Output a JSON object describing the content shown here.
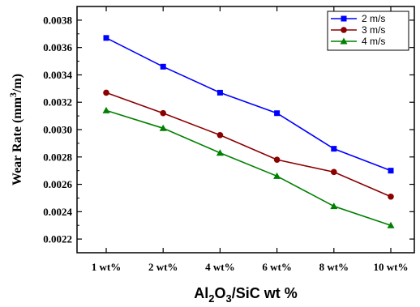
{
  "chart_data": {
    "type": "line",
    "categories": [
      "1 wt%",
      "2 wt%",
      "4 wt%",
      "6 wt%",
      "8 wt%",
      "10 wt%"
    ],
    "series": [
      {
        "name": "2 m/s",
        "color": "#0000ff",
        "marker": "square",
        "values": [
          0.00367,
          0.00346,
          0.00327,
          0.00312,
          0.00286,
          0.0027
        ]
      },
      {
        "name": "3 m/s",
        "color": "#8b0000",
        "marker": "circle",
        "values": [
          0.00327,
          0.00312,
          0.00296,
          0.00278,
          0.00269,
          0.00251
        ]
      },
      {
        "name": "4 m/s",
        "color": "#008000",
        "marker": "triangle",
        "values": [
          0.00314,
          0.00301,
          0.00283,
          0.00266,
          0.00244,
          0.0023
        ]
      }
    ],
    "ylim": [
      0.0021,
      0.0039
    ],
    "yticks": [
      "0.0022",
      "0.0024",
      "0.0026",
      "0.0028",
      "0.0030",
      "0.0032",
      "0.0034",
      "0.0036",
      "0.0038"
    ],
    "ytick_values": [
      0.0022,
      0.0024,
      0.0026,
      0.0028,
      0.003,
      0.0032,
      0.0034,
      0.0036,
      0.0038
    ],
    "xlabel": {
      "p1": "Al",
      "s1": "2",
      "p2": "O",
      "s2": "3",
      "p3": "/SiC wt %"
    },
    "ylabel": {
      "main": "Wear Rate (mm",
      "sup": "3",
      "tail": "/m)"
    },
    "legend_position": "top-right",
    "grid": false
  }
}
